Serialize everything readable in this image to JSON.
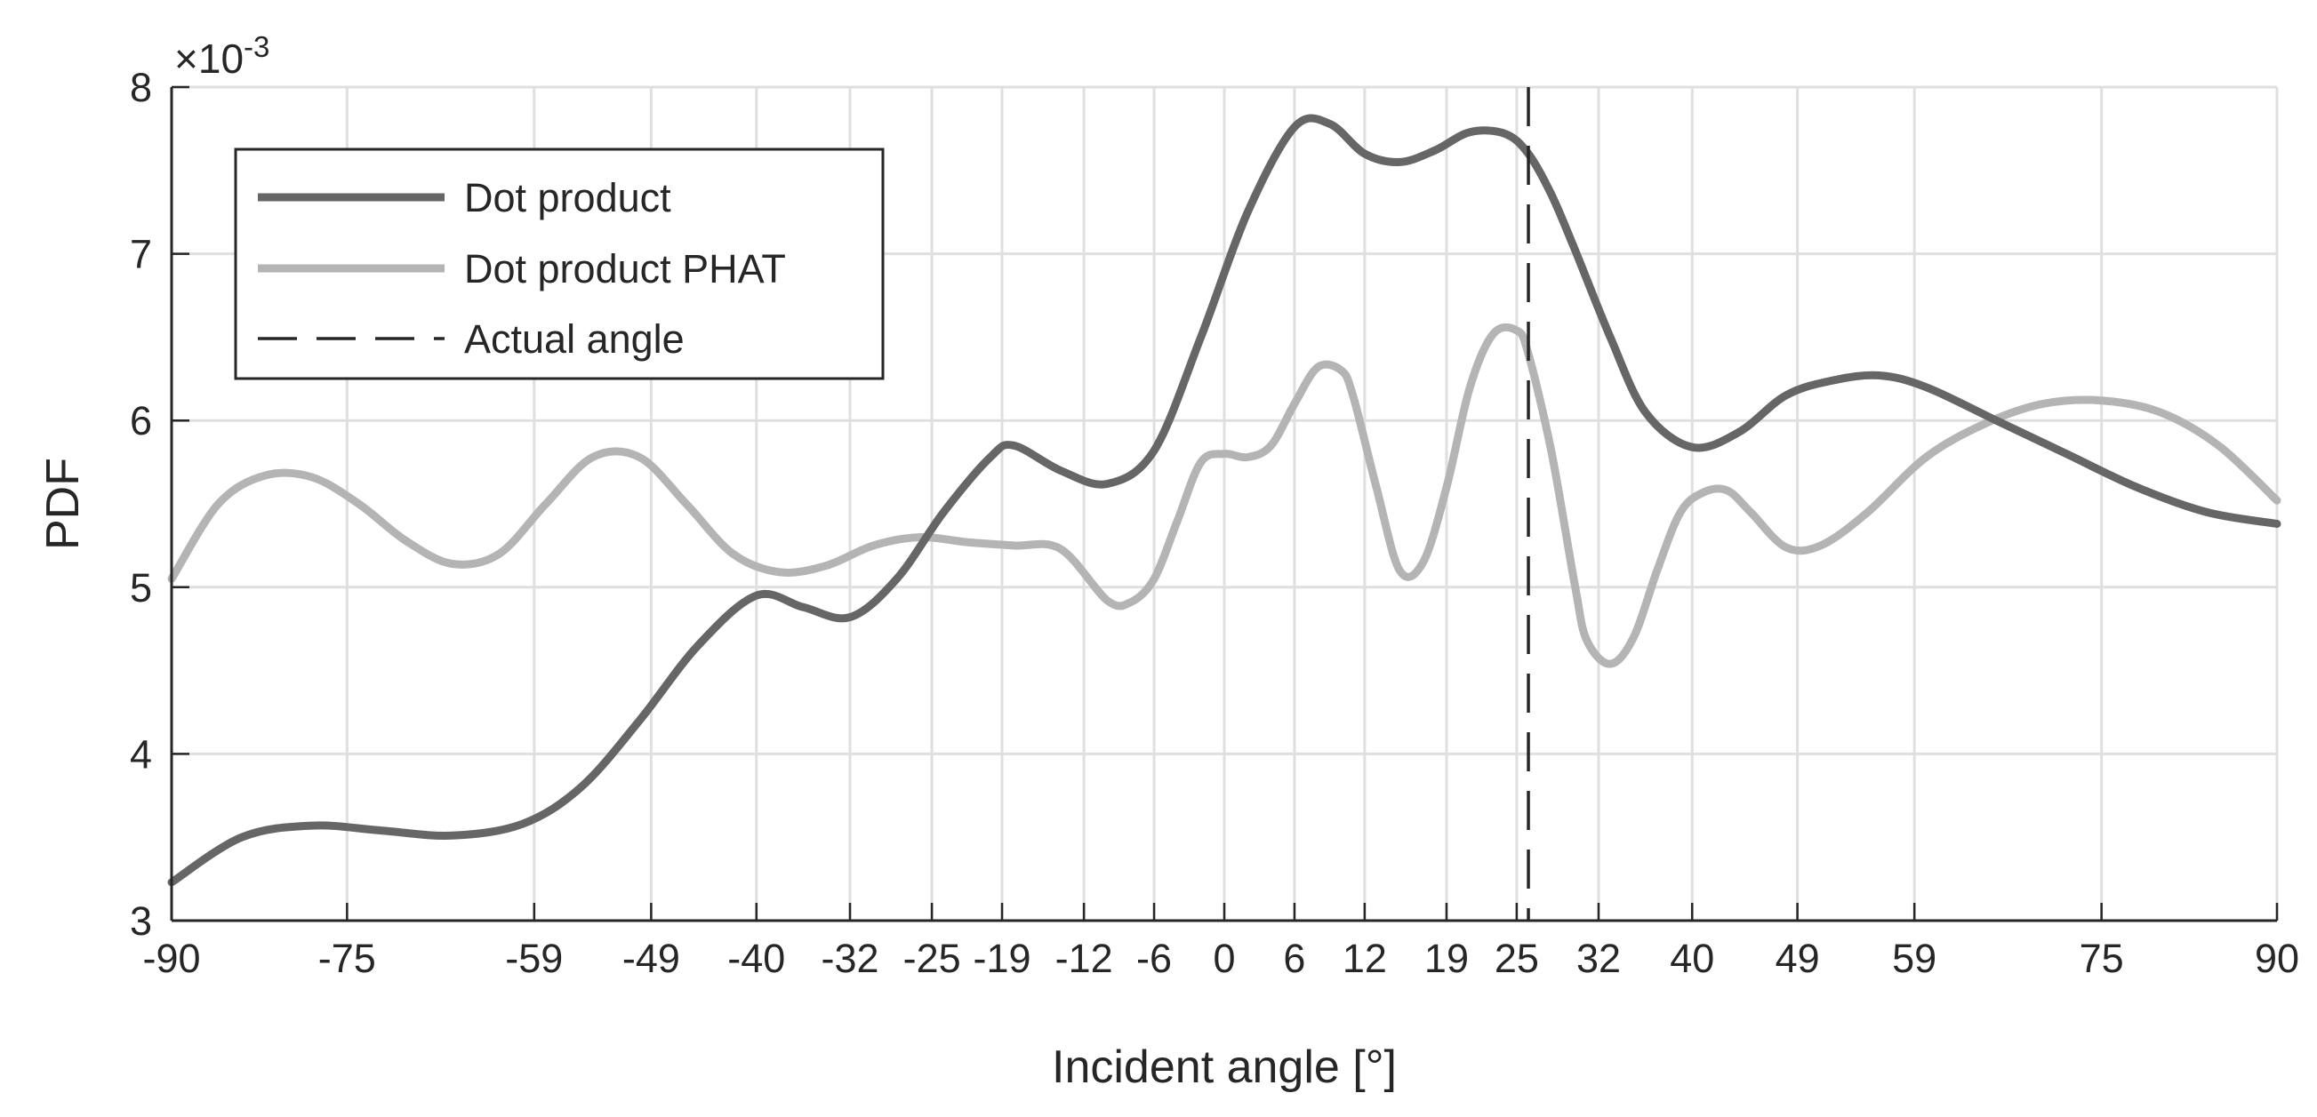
{
  "chart_data": {
    "type": "line",
    "xlabel": "Incident angle [°]",
    "ylabel": "PDF",
    "y_exponent_label": "×10",
    "y_exponent_power": "-3",
    "xlim": [
      -90,
      90
    ],
    "ylim": [
      3,
      8
    ],
    "x_ticks": [
      -90,
      -75,
      -59,
      -49,
      -40,
      -32,
      -25,
      -19,
      -12,
      -6,
      0,
      6,
      12,
      19,
      25,
      32,
      40,
      49,
      59,
      75,
      90
    ],
    "x_tick_labels": [
      "-90",
      "-75",
      "-59",
      "-49",
      "-40",
      "-32",
      "-25",
      "-19",
      "-12",
      "-6",
      "0",
      "6",
      "12",
      "19",
      "25",
      "32",
      "40",
      "49",
      "59",
      "75",
      "90"
    ],
    "y_ticks": [
      3,
      4,
      5,
      6,
      7,
      8
    ],
    "y_tick_labels": [
      "3",
      "4",
      "5",
      "6",
      "7",
      "8"
    ],
    "grid": true,
    "legend_position": "top-left",
    "series": [
      {
        "name": "Dot product",
        "color": "#666666",
        "x": [
          -90,
          -84,
          -78,
          -72,
          -66,
          -60,
          -55,
          -50,
          -45,
          -40,
          -36,
          -32,
          -28,
          -24,
          -20,
          -18,
          -14,
          -10,
          -6,
          -2,
          2,
          6,
          9,
          12,
          15,
          18,
          21,
          24,
          26,
          28,
          30,
          33,
          36,
          40,
          44,
          48,
          52,
          56,
          60,
          66,
          72,
          78,
          84,
          90
        ],
        "y": [
          3.23,
          3.5,
          3.57,
          3.54,
          3.51,
          3.58,
          3.8,
          4.2,
          4.65,
          4.95,
          4.88,
          4.82,
          5.05,
          5.45,
          5.78,
          5.85,
          5.7,
          5.62,
          5.82,
          6.5,
          7.25,
          7.76,
          7.78,
          7.6,
          7.55,
          7.62,
          7.73,
          7.72,
          7.6,
          7.35,
          7.02,
          6.5,
          6.05,
          5.84,
          5.93,
          6.15,
          6.24,
          6.27,
          6.2,
          6.0,
          5.8,
          5.6,
          5.45,
          5.38
        ]
      },
      {
        "name": "Dot product PHAT",
        "color": "#b4b4b4",
        "x": [
          -90,
          -86,
          -82,
          -78,
          -74,
          -70,
          -66,
          -62,
          -58,
          -54,
          -50,
          -46,
          -42,
          -38,
          -34,
          -30,
          -26,
          -22,
          -18,
          -14,
          -10,
          -8,
          -6,
          -4,
          -2,
          0,
          2,
          4,
          6,
          8,
          10,
          11,
          13,
          15,
          17,
          19,
          21,
          23,
          25,
          26,
          28,
          30,
          31,
          33,
          35,
          37,
          39,
          41,
          43,
          45,
          48,
          51,
          55,
          60,
          65,
          70,
          75,
          80,
          85,
          90
        ],
        "y": [
          5.05,
          5.5,
          5.67,
          5.66,
          5.5,
          5.28,
          5.14,
          5.2,
          5.5,
          5.78,
          5.78,
          5.5,
          5.2,
          5.09,
          5.13,
          5.25,
          5.3,
          5.27,
          5.25,
          5.23,
          4.92,
          4.91,
          5.05,
          5.4,
          5.75,
          5.8,
          5.78,
          5.85,
          6.1,
          6.32,
          6.3,
          6.15,
          5.6,
          5.1,
          5.15,
          5.6,
          6.2,
          6.52,
          6.54,
          6.4,
          5.8,
          5.0,
          4.68,
          4.54,
          4.7,
          5.1,
          5.45,
          5.57,
          5.58,
          5.45,
          5.24,
          5.25,
          5.45,
          5.78,
          5.98,
          6.1,
          6.12,
          6.05,
          5.85,
          5.52
        ]
      }
    ],
    "reference_line": {
      "name": "Actual angle",
      "color": "#262626",
      "x": 26,
      "style": "dashed"
    }
  }
}
